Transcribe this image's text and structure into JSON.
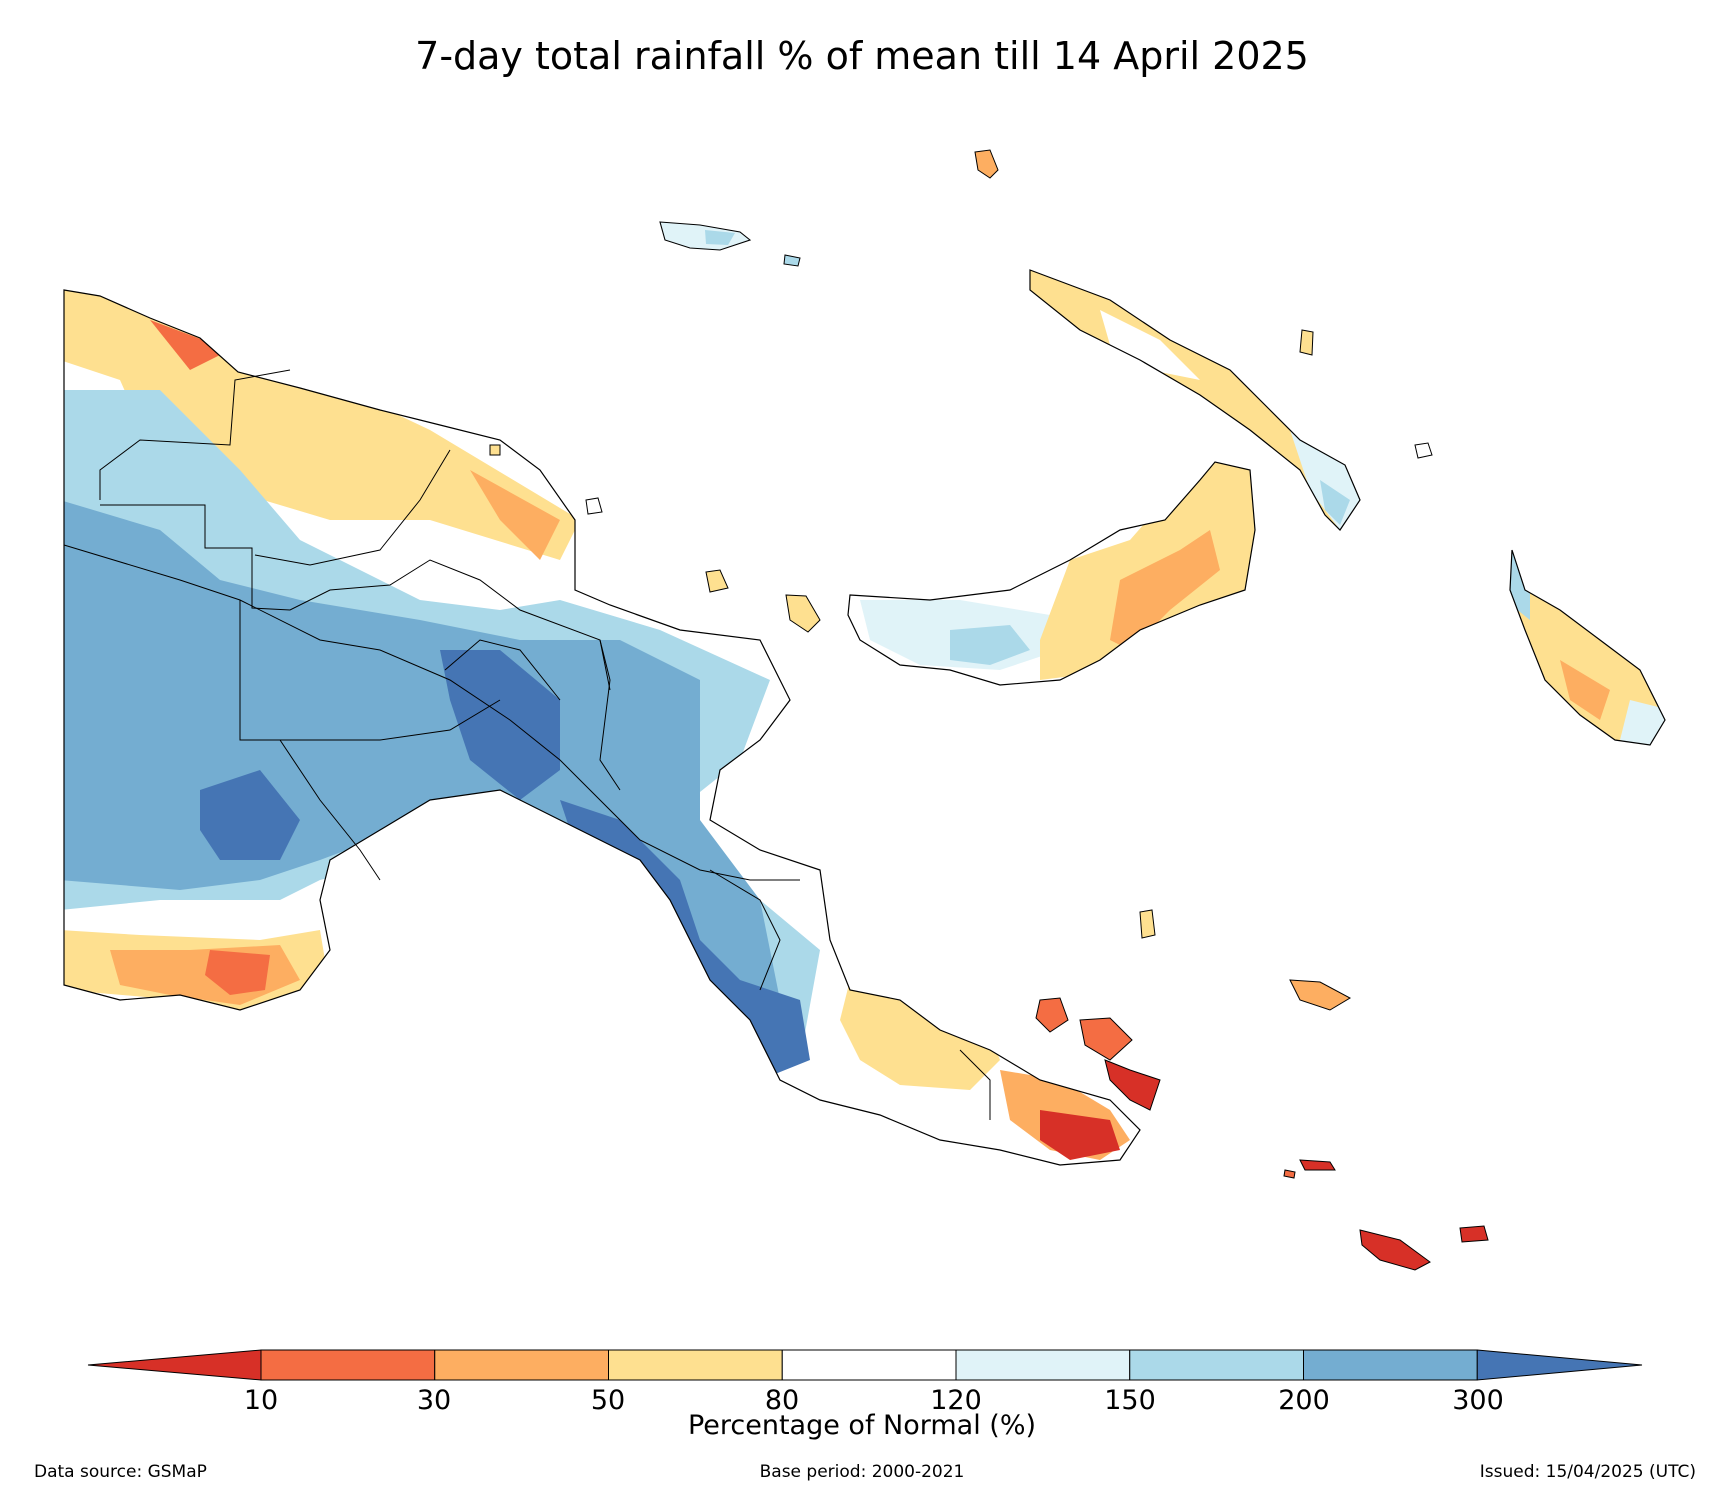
{
  "title": "7-day total rainfall % of mean till 14 April 2025",
  "colorbar": {
    "label": "Percentage of Normal (%)",
    "ticks": [
      "10",
      "30",
      "50",
      "80",
      "120",
      "150",
      "200",
      "300"
    ],
    "colors": [
      "#d73027",
      "#f46d43",
      "#fdae61",
      "#fee090",
      "#ffffff",
      "#e0f3f8",
      "#abd9e9",
      "#74add1",
      "#4575b4"
    ]
  },
  "footer": {
    "source": "Data source: GSMaP",
    "base_period": "Base period: 2000-2021",
    "issued": "Issued: 15/04/2025 (UTC)"
  }
}
